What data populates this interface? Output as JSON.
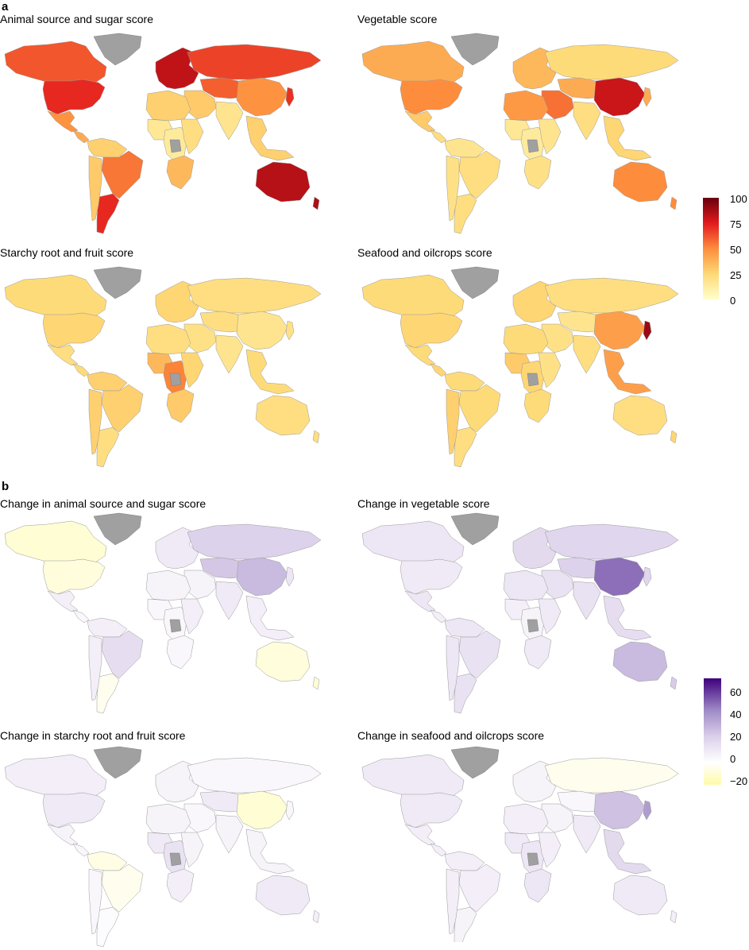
{
  "panel_a": {
    "letter": "a",
    "maps": [
      {
        "title": "Animal source and sugar score",
        "palette": "heat",
        "regions": {
          "northAmerica": 62,
          "usa": 72,
          "mexico": 48,
          "centralAmerica": 40,
          "southAmericaNorth": 28,
          "brazil": 55,
          "argentina": 72,
          "andes": 30,
          "europe": 82,
          "russia": 66,
          "middleEast": 30,
          "centralAsia": 60,
          "southAsia": 18,
          "china": 48,
          "seAsia": 28,
          "japan": 70,
          "northAfrica": 28,
          "westAfrica": 16,
          "centralAfrica": 14,
          "eastAfrica": 22,
          "southernAfrica": 36,
          "australia": 84,
          "nz": 86
        }
      },
      {
        "title": "Vegetable score",
        "palette": "heat",
        "regions": {
          "northAmerica": 40,
          "usa": 50,
          "mexico": 30,
          "centralAmerica": 22,
          "southAmericaNorth": 18,
          "brazil": 22,
          "argentina": 22,
          "andes": 20,
          "europe": 36,
          "russia": 24,
          "middleEast": 56,
          "centralAsia": 40,
          "southAsia": 22,
          "china": 80,
          "seAsia": 26,
          "japan": 40,
          "northAfrica": 46,
          "westAfrica": 16,
          "centralAfrica": 14,
          "eastAfrica": 18,
          "southernAfrica": 20,
          "australia": 50,
          "nz": 50
        }
      },
      {
        "title": "Starchy root and fruit score",
        "palette": "heat",
        "regions": {
          "northAmerica": 24,
          "usa": 26,
          "mexico": 22,
          "centralAmerica": 24,
          "southAmericaNorth": 28,
          "brazil": 28,
          "argentina": 22,
          "andes": 28,
          "europe": 26,
          "russia": 22,
          "middleEast": 20,
          "centralAsia": 22,
          "southAsia": 18,
          "china": 18,
          "seAsia": 24,
          "japan": 20,
          "northAfrica": 22,
          "westAfrica": 36,
          "centralAfrica": 52,
          "eastAfrica": 26,
          "southernAfrica": 30,
          "australia": 22,
          "nz": 22
        }
      },
      {
        "title": "Seafood and oilcrops score",
        "palette": "heat",
        "regions": {
          "northAmerica": 24,
          "usa": 26,
          "mexico": 24,
          "centralAmerica": 26,
          "southAmericaNorth": 24,
          "brazil": 24,
          "argentina": 22,
          "andes": 28,
          "europe": 26,
          "russia": 22,
          "middleEast": 20,
          "centralAsia": 18,
          "southAsia": 22,
          "china": 44,
          "seAsia": 44,
          "japan": 90,
          "northAfrica": 24,
          "westAfrica": 30,
          "centralAfrica": 26,
          "eastAfrica": 20,
          "southernAfrica": 24,
          "australia": 22,
          "nz": 26
        }
      }
    ],
    "legend": {
      "ticks": [
        "100",
        "75",
        "50",
        "25",
        "0"
      ],
      "min": 0,
      "max": 100
    }
  },
  "panel_b": {
    "letter": "b",
    "maps": [
      {
        "title": "Change in animal source and sugar score",
        "palette": "purple",
        "regions": {
          "northAmerica": -10,
          "usa": -8,
          "mexico": 8,
          "centralAmerica": 4,
          "southAmericaNorth": 8,
          "brazil": 16,
          "argentina": -4,
          "andes": 8,
          "europe": 10,
          "russia": 22,
          "middleEast": 6,
          "centralAsia": 26,
          "southAsia": 10,
          "china": 30,
          "seAsia": 8,
          "japan": 12,
          "northAfrica": 6,
          "westAfrica": 4,
          "centralAfrica": 4,
          "eastAfrica": 8,
          "southernAfrica": 4,
          "australia": -8,
          "nz": -10
        }
      },
      {
        "title": "Change in vegetable score",
        "palette": "purple",
        "regions": {
          "northAmerica": 12,
          "usa": 10,
          "mexico": 12,
          "centralAmerica": 8,
          "southAmericaNorth": 12,
          "brazil": 14,
          "argentina": 14,
          "andes": 12,
          "europe": 18,
          "russia": 20,
          "middleEast": 14,
          "centralAsia": 22,
          "southAsia": 14,
          "china": 52,
          "seAsia": 16,
          "japan": 20,
          "northAfrica": 12,
          "westAfrica": 8,
          "centralAfrica": 6,
          "eastAfrica": 10,
          "southernAfrica": 10,
          "australia": 30,
          "nz": 24
        }
      },
      {
        "title": "Change in starchy root and fruit score",
        "palette": "purple",
        "regions": {
          "northAmerica": 8,
          "usa": 10,
          "mexico": 6,
          "centralAmerica": 4,
          "southAmericaNorth": -6,
          "brazil": -4,
          "argentina": 2,
          "andes": 4,
          "europe": 6,
          "russia": 4,
          "middleEast": 4,
          "centralAsia": 10,
          "southAsia": 6,
          "china": -10,
          "seAsia": 6,
          "japan": 4,
          "northAfrica": 6,
          "westAfrica": 10,
          "centralAfrica": 14,
          "eastAfrica": 6,
          "southernAfrica": 8,
          "australia": 10,
          "nz": 8
        }
      },
      {
        "title": "Change in seafood and oilcrops score",
        "palette": "purple",
        "regions": {
          "northAmerica": 10,
          "usa": 10,
          "mexico": 8,
          "centralAmerica": 8,
          "southAmericaNorth": 8,
          "brazil": 8,
          "argentina": 6,
          "andes": 8,
          "europe": 6,
          "russia": -4,
          "middleEast": 6,
          "centralAsia": 4,
          "southAsia": 10,
          "china": 28,
          "seAsia": 18,
          "japan": 40,
          "northAfrica": 8,
          "westAfrica": 10,
          "centralAfrica": 12,
          "eastAfrica": 8,
          "southernAfrica": 12,
          "australia": 10,
          "nz": 8
        }
      }
    ],
    "legend": {
      "ticks": [
        "60",
        "40",
        "20",
        "0",
        "−20"
      ],
      "tick_values": [
        60,
        40,
        20,
        0,
        -20
      ],
      "min": -20,
      "max": 75
    }
  },
  "no_data_color": "#a0a0a0"
}
